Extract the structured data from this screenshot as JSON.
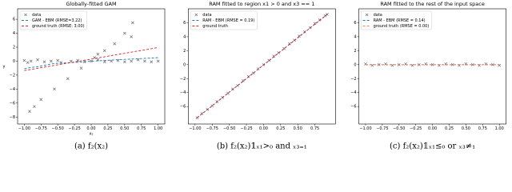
{
  "chart_data": [
    {
      "type": "scatter",
      "title": "Globally-fitted GAM",
      "xlabel": "x₂",
      "ylabel": "y",
      "caption": "(a)  f₂(x₂)",
      "xlim": [
        -1.1,
        1.1
      ],
      "ylim": [
        -9,
        7.5
      ],
      "xticks": [
        {
          "value": -1,
          "label": "−1.00"
        },
        {
          "value": -0.75,
          "label": "−0.75"
        },
        {
          "value": -0.5,
          "label": "−0.50"
        },
        {
          "value": -0.25,
          "label": "−0.25"
        },
        {
          "value": 0,
          "label": "0.00"
        },
        {
          "value": 0.25,
          "label": "0.25"
        },
        {
          "value": 0.5,
          "label": "0.50"
        },
        {
          "value": 0.75,
          "label": "0.75"
        },
        {
          "value": 1,
          "label": "1.00"
        }
      ],
      "yticks": [
        {
          "value": -8,
          "label": "−8"
        },
        {
          "value": -6,
          "label": "−6"
        },
        {
          "value": -4,
          "label": "−4"
        },
        {
          "value": -2,
          "label": "−2"
        },
        0,
        2,
        4,
        6
      ],
      "legend": "upper left",
      "series": [
        {
          "name": "data",
          "marker": "x",
          "color": "#555566",
          "x": [
            -1,
            -0.95,
            -0.9,
            -0.8,
            -0.7,
            -0.6,
            -0.5,
            -0.45,
            -0.3,
            -0.2,
            -0.1,
            0,
            0.1,
            0.2,
            0.3,
            0.4,
            0.5,
            0.6,
            0.7,
            0.8,
            0.9,
            1.0,
            -0.92,
            -0.85,
            -0.75,
            -0.55,
            -0.35,
            -0.15,
            0.05,
            0.2,
            0.35,
            0.5,
            0.62,
            0.1,
            0.6
          ],
          "values": [
            0.1,
            -0.2,
            0,
            0.2,
            -0.1,
            0,
            0.1,
            -0.2,
            0,
            0.1,
            -0.1,
            0,
            0.2,
            -0.1,
            0,
            0.1,
            -0.1,
            0,
            0.2,
            0,
            -0.1,
            0,
            -7.2,
            -6.5,
            -5.5,
            -4,
            -2.5,
            -1,
            0.5,
            1.5,
            2.5,
            4,
            5.5,
            1,
            3.5
          ]
        },
        {
          "name": "GAM - EBM (RMSE=3.22)",
          "linestyle": "dashed",
          "color": "#1f77b4",
          "x": [
            -1,
            -0.9,
            -0.8,
            -0.7,
            -0.6,
            -0.5,
            -0.3,
            -0.1,
            0,
            0.2,
            0.4,
            0.6,
            0.8,
            1.0
          ],
          "values": [
            -1.1,
            -0.9,
            -0.8,
            -0.6,
            -0.4,
            -0.3,
            -0.2,
            -0.1,
            0,
            0.1,
            0.2,
            0.3,
            0.4,
            0.5
          ]
        },
        {
          "name": "ground truth (RMSE: 3.00)",
          "linestyle": "dashed",
          "color": "#d62728",
          "x": [
            -1,
            1
          ],
          "values": [
            -1.35,
            1.95
          ]
        }
      ]
    },
    {
      "type": "scatter",
      "title": "RAM fitted to region x1 > 0 and x3 == 1",
      "caption": "(b)  f₂(x₂)𝟙ₓ₁>₀ and ₓ₃₌₁",
      "xlim": [
        -1.1,
        1.05
      ],
      "ylim": [
        -8.5,
        8
      ],
      "xticks": [
        {
          "value": -1,
          "label": "−1.00"
        },
        {
          "value": -0.75,
          "label": "−0.75"
        },
        {
          "value": -0.5,
          "label": "−0.50"
        },
        {
          "value": -0.25,
          "label": "−0.25"
        },
        {
          "value": 0,
          "label": "0.00"
        },
        {
          "value": 0.25,
          "label": "0.25"
        },
        {
          "value": 0.5,
          "label": "0.50"
        },
        {
          "value": 0.75,
          "label": "0.75"
        }
      ],
      "yticks": [
        {
          "value": -6,
          "label": "−6"
        },
        {
          "value": -4,
          "label": "−4"
        },
        {
          "value": -2,
          "label": "−2"
        },
        0,
        2,
        4,
        6
      ],
      "legend": "upper left",
      "series": [
        {
          "name": "data",
          "marker": "x",
          "color": "#555566",
          "x": [
            -0.97,
            -0.9,
            -0.82,
            -0.75,
            -0.68,
            -0.6,
            -0.52,
            -0.45,
            -0.38,
            -0.3,
            -0.22,
            -0.15,
            -0.08,
            0,
            0.08,
            0.15,
            0.22,
            0.3,
            0.38,
            0.45,
            0.52,
            0.6,
            0.68,
            0.75,
            0.82,
            0.9,
            0.93
          ],
          "values": [
            -7.6,
            -7.0,
            -6.4,
            -5.9,
            -5.3,
            -4.7,
            -4.1,
            -3.5,
            -3.0,
            -2.3,
            -1.7,
            -1.2,
            -0.6,
            0,
            0.6,
            1.2,
            1.7,
            2.3,
            3.0,
            3.5,
            4.1,
            4.7,
            5.3,
            5.9,
            6.4,
            7.0,
            7.2
          ]
        },
        {
          "name": "RAM - EBM (RMSE = 0.19)",
          "linestyle": "dashed",
          "color": "#1f77b4",
          "x": [
            -0.97,
            0.93
          ],
          "values": [
            -7.6,
            7.2
          ]
        },
        {
          "name": "ground truth",
          "linestyle": "dashed",
          "color": "#d62728",
          "x": [
            -0.97,
            0.93
          ],
          "values": [
            -7.6,
            7.2
          ]
        }
      ]
    },
    {
      "type": "scatter",
      "title": "RAM fitted to the rest of the input space",
      "caption": "(c)  f₂(x₂)𝟙ₓ₁≤₀ or ₓ₃≠₁",
      "xlim": [
        -1.1,
        1.1
      ],
      "ylim": [
        -8.5,
        8
      ],
      "xticks": [
        {
          "value": -1,
          "label": "−1.00"
        },
        {
          "value": -0.75,
          "label": "−0.75"
        },
        {
          "value": -0.5,
          "label": "−0.50"
        },
        {
          "value": -0.25,
          "label": "−0.25"
        },
        {
          "value": 0,
          "label": "0.00"
        },
        {
          "value": 0.25,
          "label": "0.25"
        },
        {
          "value": 0.5,
          "label": "0.50"
        },
        {
          "value": 0.75,
          "label": "0.75"
        },
        {
          "value": 1,
          "label": "1.00"
        }
      ],
      "yticks": [
        {
          "value": -6,
          "label": "−6"
        },
        {
          "value": -4,
          "label": "−4"
        },
        {
          "value": -2,
          "label": "−2"
        },
        0,
        2,
        4,
        6
      ],
      "legend": "upper left",
      "series": [
        {
          "name": "data",
          "marker": "x",
          "color": "#555566",
          "x": [
            -1,
            -0.9,
            -0.8,
            -0.7,
            -0.6,
            -0.5,
            -0.4,
            -0.3,
            -0.2,
            -0.1,
            0,
            0.1,
            0.2,
            0.3,
            0.4,
            0.5,
            0.6,
            0.7,
            0.8,
            0.9,
            1.0
          ],
          "values": [
            0.1,
            -0.1,
            0,
            0.1,
            -0.1,
            0,
            0.1,
            -0.1,
            0,
            0.1,
            0,
            -0.1,
            0.1,
            0,
            -0.1,
            0.1,
            0,
            -0.1,
            0.1,
            0,
            -0.1
          ]
        },
        {
          "name": "RAM - EBM (RMSE = 0.14)",
          "linestyle": "dashed",
          "color": "#1f77b4",
          "x": [
            -1,
            1
          ],
          "values": [
            0,
            0
          ]
        },
        {
          "name": "ground truth (RMSE = 0.00)",
          "linestyle": "dashed",
          "color": "#ff7f50",
          "x": [
            -1,
            1
          ],
          "values": [
            0,
            0
          ]
        }
      ]
    }
  ]
}
